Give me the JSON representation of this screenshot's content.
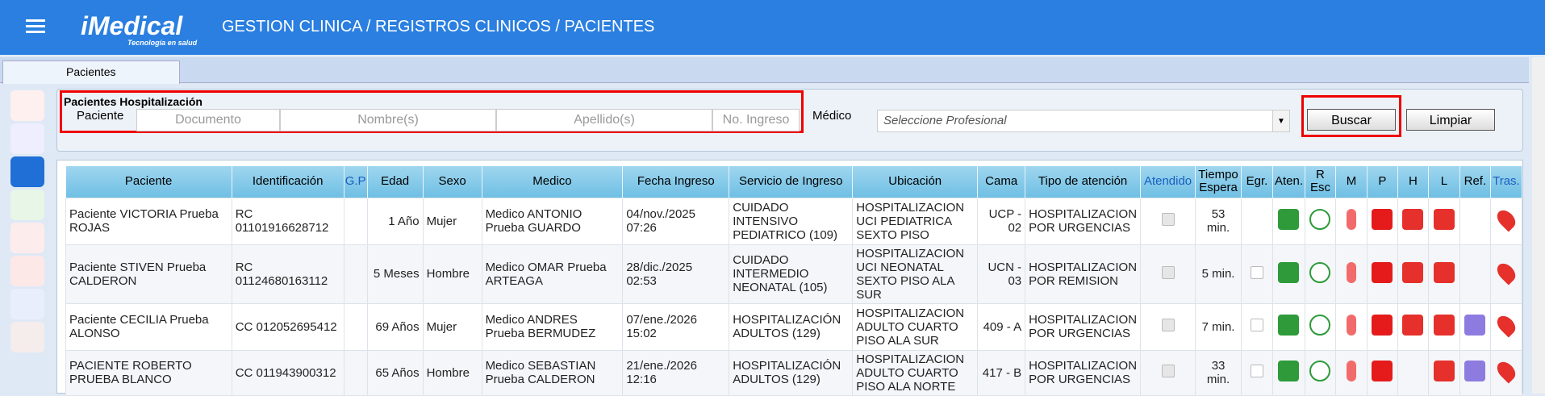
{
  "header": {
    "brand": "iMedical",
    "tagline": "Tecnología en salud",
    "breadcrumb": "GESTION CLINICA / REGISTROS CLINICOS / PACIENTES"
  },
  "tab": "Pacientes",
  "filter": {
    "legend": "Pacientes Hospitalización",
    "label": "Paciente",
    "placeholders": [
      "Documento",
      "Nombre(s)",
      "Apellido(s)",
      "No. Ingreso"
    ],
    "medico_label": "Médico",
    "medico_placeholder": "Seleccione Profesional",
    "buttons": [
      "Buscar",
      "Limpiar"
    ]
  },
  "table": {
    "headers": [
      "Paciente",
      "Identificación",
      "G.P",
      "Edad",
      "Sexo",
      "Medico",
      "Fecha Ingreso",
      "Servicio de Ingreso",
      "Ubicación",
      "Cama",
      "Tipo de atención",
      "Atendido",
      "Tiempo Espera",
      "Egr.",
      "Aten.",
      "R Esc",
      "M",
      "P",
      "H",
      "L",
      "Ref.",
      "Tras."
    ],
    "rows": [
      [
        "Paciente VICTORIA Prueba ROJAS",
        "RC 01101916628712",
        "",
        "1 Año",
        "Mujer",
        "Medico ANTONIO Prueba GUARDO",
        "04/nov./2025 07:26",
        "CUIDADO INTENSIVO PEDIATRICO (109)",
        "HOSPITALIZACION UCI PEDIATRICA SEXTO PISO",
        "UCP - 02",
        "HOSPITALIZACION POR URGENCIAS",
        "",
        "53 min."
      ],
      [
        "Paciente STIVEN Prueba CALDERON",
        "RC 01124680163112",
        "",
        "5 Meses",
        "Hombre",
        "Medico OMAR Prueba ARTEAGA",
        "28/dic./2025 02:53",
        "CUIDADO INTERMEDIO NEONATAL (105)",
        "HOSPITALIZACION UCI NEONATAL SEXTO PISO ALA SUR",
        "UCN - 03",
        "HOSPITALIZACION POR REMISION",
        "",
        "5 min."
      ],
      [
        "Paciente CECILIA Prueba ALONSO",
        "CC 012052695412",
        "",
        "69 Años",
        "Mujer",
        "Medico ANDRES Prueba BERMUDEZ",
        "07/ene./2026 15:02",
        "HOSPITALIZACIÓN ADULTOS (129)",
        "HOSPITALIZACION ADULTO CUARTO PISO ALA SUR",
        "409 - A",
        "HOSPITALIZACION POR URGENCIAS",
        "",
        "7 min."
      ],
      [
        "PACIENTE ROBERTO PRUEBA BLANCO",
        "CC 011943900312",
        "",
        "65 Años",
        "Hombre",
        "Medico SEBASTIAN Prueba CALDERON",
        "21/ene./2026 12:16",
        "HOSPITALIZACIÓN ADULTOS (129)",
        "HOSPITALIZACION ADULTO CUARTO PISO ALA NORTE",
        "417 - B",
        "HOSPITALIZACION POR URGENCIAS",
        "",
        "33 min."
      ]
    ]
  }
}
